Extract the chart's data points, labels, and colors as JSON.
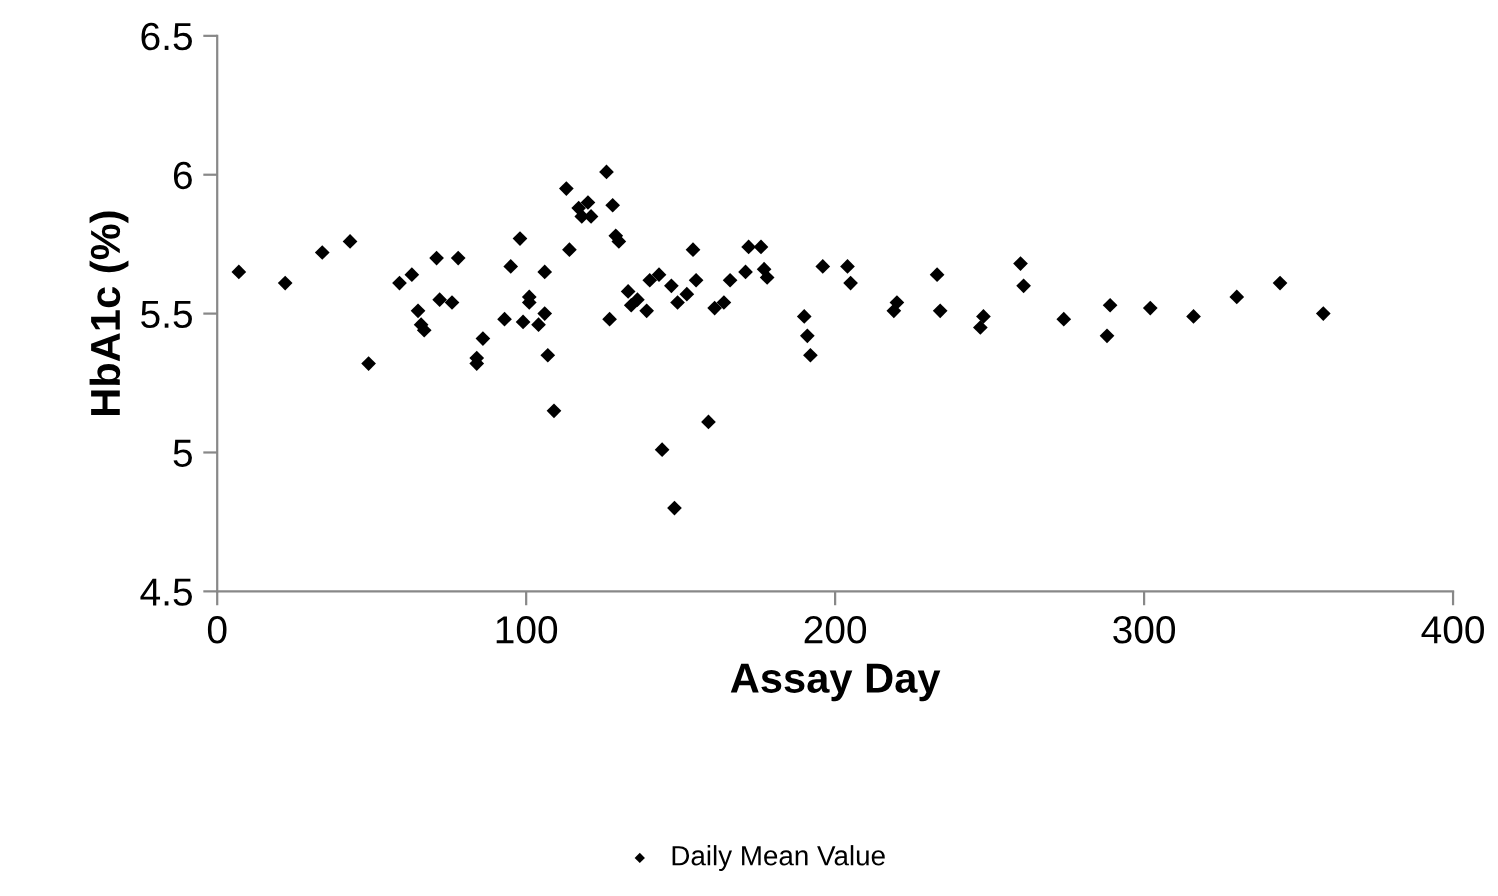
{
  "chart_data": {
    "type": "scatter",
    "xlabel": "Assay Day",
    "ylabel": "HbA1c (%)",
    "xlim": [
      0,
      400
    ],
    "xticks": [
      0,
      100,
      200,
      300,
      400
    ],
    "ylim": [
      4.5,
      6.5
    ],
    "yticks": [
      4.5,
      5,
      5.5,
      6,
      6.5
    ],
    "grid": false,
    "legend": "bottom",
    "marker": "diamond",
    "series": [
      {
        "name": "Daily Mean Value",
        "color": "#000000",
        "x": [
          7,
          22,
          34,
          43,
          49,
          59,
          63,
          65,
          66,
          67,
          71,
          72,
          76,
          78,
          84,
          84,
          86,
          93,
          95,
          98,
          99,
          101,
          101,
          104,
          106,
          106,
          107,
          109,
          113,
          114,
          117,
          118,
          120,
          121,
          126,
          127,
          128,
          129,
          130,
          133,
          134,
          136,
          139,
          140,
          143,
          144,
          147,
          148,
          149,
          152,
          154,
          155,
          159,
          161,
          164,
          166,
          171,
          172,
          176,
          177,
          178,
          190,
          191,
          192,
          196,
          204,
          205,
          219,
          220,
          233,
          234,
          247,
          248,
          260,
          261,
          274,
          288,
          289,
          302,
          316,
          330,
          344,
          358
        ],
        "values": [
          5.65,
          5.61,
          5.72,
          5.76,
          5.32,
          5.61,
          5.64,
          5.51,
          5.46,
          5.44,
          5.7,
          5.55,
          5.54,
          5.7,
          5.34,
          5.32,
          5.41,
          5.48,
          5.67,
          5.77,
          5.47,
          5.56,
          5.54,
          5.46,
          5.65,
          5.5,
          5.35,
          5.15,
          5.95,
          5.73,
          5.88,
          5.85,
          5.9,
          5.85,
          6.01,
          5.48,
          5.89,
          5.78,
          5.76,
          5.58,
          5.53,
          5.55,
          5.51,
          5.62,
          5.64,
          5.01,
          5.6,
          4.8,
          5.54,
          5.57,
          5.73,
          5.62,
          5.11,
          5.52,
          5.54,
          5.62,
          5.65,
          5.74,
          5.74,
          5.66,
          5.63,
          5.49,
          5.42,
          5.35,
          5.67,
          5.67,
          5.61,
          5.51,
          5.54,
          5.64,
          5.51,
          5.45,
          5.49,
          5.68,
          5.6,
          5.48,
          5.42,
          5.53,
          5.52,
          5.49,
          5.56,
          5.61,
          5.5
        ]
      }
    ]
  }
}
